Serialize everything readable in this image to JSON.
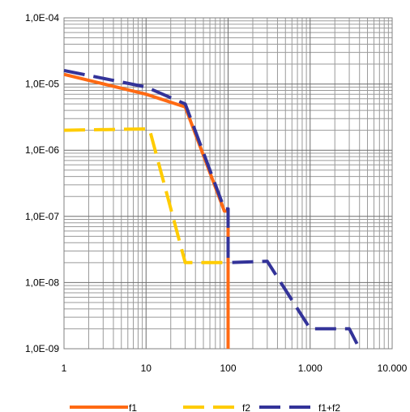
{
  "chart_data": {
    "type": "line",
    "title": "",
    "xlabel": "",
    "ylabel": "",
    "x_scale": "log",
    "y_scale": "log",
    "xlim": [
      1,
      10000
    ],
    "ylim": [
      1e-09,
      0.0001
    ],
    "grid": true,
    "legend_position": "bottom",
    "x_ticks": [
      {
        "value": 1,
        "label": "1"
      },
      {
        "value": 10,
        "label": "10"
      },
      {
        "value": 100,
        "label": "100"
      },
      {
        "value": 1000,
        "label": "1.000"
      },
      {
        "value": 10000,
        "label": "10.000"
      }
    ],
    "y_ticks": [
      {
        "value": 0.0001,
        "label": "1,0E-04"
      },
      {
        "value": 1e-05,
        "label": "1,0E-05"
      },
      {
        "value": 1e-06,
        "label": "1,0E-06"
      },
      {
        "value": 1e-07,
        "label": "1,0E-07"
      },
      {
        "value": 1e-08,
        "label": "1,0E-08"
      },
      {
        "value": 1e-09,
        "label": "1,0E-09"
      }
    ],
    "series": [
      {
        "name": "f1",
        "color": "#ff6a13",
        "dash": "solid",
        "x": [
          1,
          10,
          30,
          90,
          100,
          100
        ],
        "y": [
          1.4e-05,
          7e-06,
          4.5e-06,
          1.2e-07,
          1.2e-07,
          1e-09
        ]
      },
      {
        "name": "f2",
        "color": "#ffcc00",
        "dash": "dashed",
        "x": [
          1,
          11,
          30,
          100,
          100
        ],
        "y": [
          2e-06,
          2.1e-06,
          2e-08,
          2e-08,
          2e-08
        ]
      },
      {
        "name": "f1+f2",
        "color": "#333399",
        "dash": "dashed",
        "x": [
          1,
          10,
          30,
          90,
          100,
          100,
          300,
          1000,
          3000,
          4000
        ],
        "y": [
          1.6e-05,
          9e-06,
          5e-06,
          1.3e-07,
          1.3e-07,
          2e-08,
          2.1e-08,
          2e-09,
          2e-09,
          1e-09
        ]
      }
    ]
  }
}
